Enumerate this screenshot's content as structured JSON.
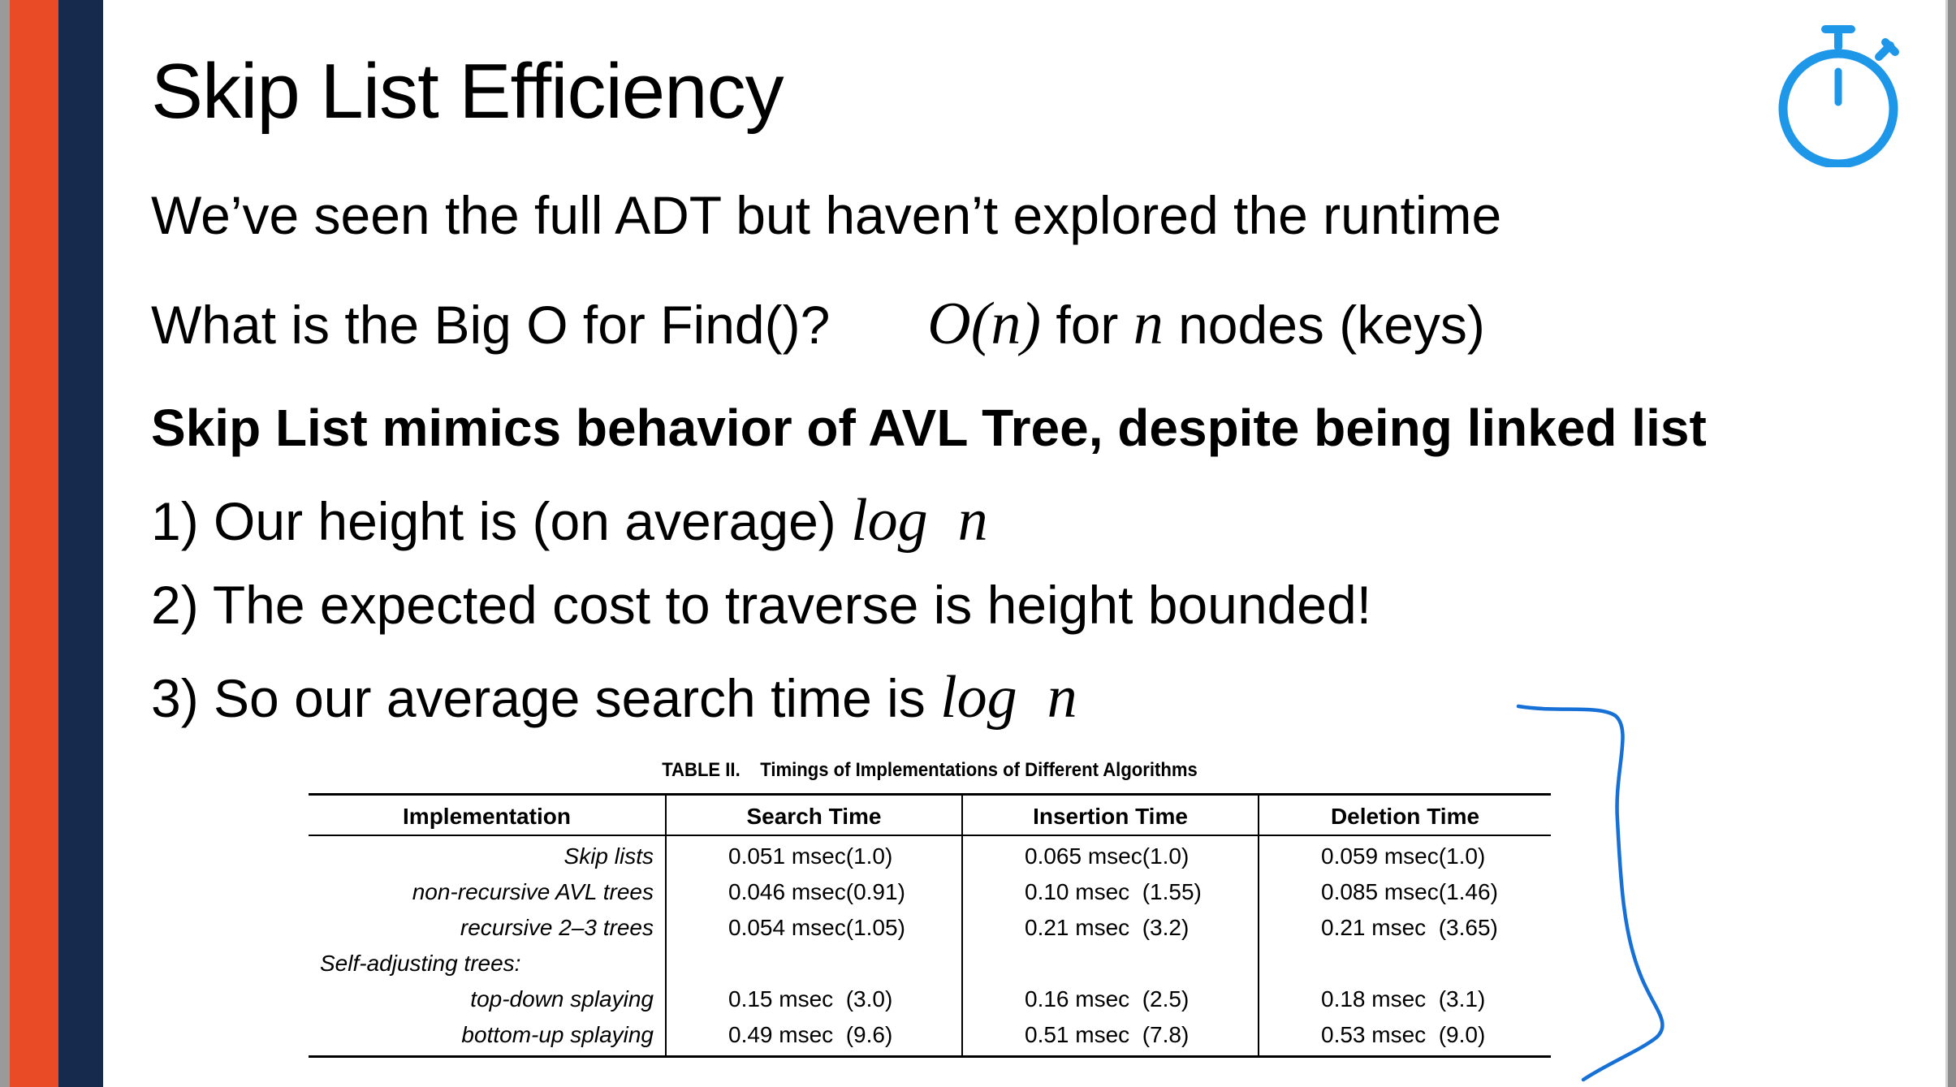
{
  "slide": {
    "title": "Skip List Efficiency",
    "line1": "We’ve seen the full ADT but haven’t explored the runtime",
    "line2_question": "What is the Big O for Find()?",
    "line2_answer_math_fn": "O",
    "line2_answer_math_open": "(",
    "line2_answer_math_var": "n",
    "line2_answer_math_close": ")",
    "line2_answer_for": " for ",
    "line2_answer_var2": "n",
    "line2_answer_rest": " nodes (keys)",
    "bold_line": "Skip List mimics behavior of AVL Tree, despite being linked list",
    "point1_text": "1) Our height is (on average) ",
    "point1_math": "log  n",
    "point2_text": "2) The expected cost to traverse is height bounded!",
    "point3_text": "3) So our average search time is ",
    "point3_math": "log  n"
  },
  "icons": {
    "timer": "stopwatch-icon",
    "timer_color": "#1e97e8",
    "annotation_color": "#1670d6"
  },
  "colors": {
    "orange_bar": "#e84b26",
    "navy_bar": "#152a4c"
  },
  "table": {
    "caption": "TABLE II.    Timings of Implementations of Different Algorithms",
    "headers": [
      "Implementation",
      "Search Time",
      "Insertion Time",
      "Deletion Time"
    ],
    "rows": [
      {
        "name": "Skip lists",
        "search": "0.051 msec(1.0)",
        "insert": "0.065 msec(1.0)",
        "delete": "0.059 msec(1.0)"
      },
      {
        "name": "non-recursive AVL trees",
        "search": "0.046 msec(0.91)",
        "insert": "0.10 msec  (1.55)",
        "delete": "0.085 msec(1.46)"
      },
      {
        "name": "recursive 2–3 trees",
        "search": "0.054 msec(1.05)",
        "insert": "0.21 msec  (3.2)",
        "delete": "0.21 msec  (3.65)"
      },
      {
        "group": "Self-adjusting trees:"
      },
      {
        "name": "top-down splaying",
        "search": "0.15 msec  (3.0)",
        "insert": "0.16 msec  (2.5)",
        "delete": "0.18 msec  (3.1)"
      },
      {
        "name": "bottom-up splaying",
        "search": "0.49 msec  (9.6)",
        "insert": "0.51 msec  (7.8)",
        "delete": "0.53 msec  (9.0)"
      }
    ]
  }
}
